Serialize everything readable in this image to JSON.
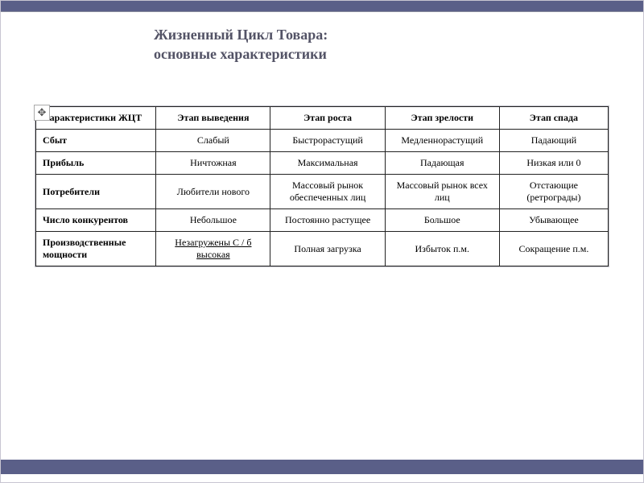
{
  "slide": {
    "title_line1": "Жизненный Цикл Товара:",
    "title_line2": "основные характеристики",
    "title_color": "#535366",
    "top_stripe_color": "#5a5f88",
    "bottom_stripe_color": "#5a5f88",
    "background_color": "#ffffff"
  },
  "table": {
    "type": "table",
    "border_color": "#222222",
    "header_fontsize": 12,
    "cell_fontsize": 12,
    "columns": [
      "Характеристики ЖЦТ",
      "Этап выведения",
      "Этап роста",
      "Этап зрелости",
      "Этап спада"
    ],
    "row_headers": [
      "Сбыт",
      "Прибыль",
      "Потребители",
      "Число конкурентов",
      "Производственные мощности"
    ],
    "rows": [
      [
        "Слабый",
        "Быстрорастущий",
        "Медленнорастущий",
        "Падающий"
      ],
      [
        "Ничтожная",
        "Максимальная",
        "Падающая",
        "Низкая или 0"
      ],
      [
        "Любители нового",
        "Массовый рынок обеспеченных лиц",
        "Массовый рынок всех лиц",
        "Отстающие (ретрограды)"
      ],
      [
        "Небольшое",
        "Постоянно растущее",
        "Большое",
        "Убывающее"
      ],
      [
        "Незагружены С / б высокая",
        "Полная загрузка",
        "Избыток п.м.",
        "Сокращение п.м."
      ]
    ],
    "col_widths_pct": [
      21,
      20,
      20,
      20,
      19
    ]
  },
  "move_icon_glyph": "✥"
}
